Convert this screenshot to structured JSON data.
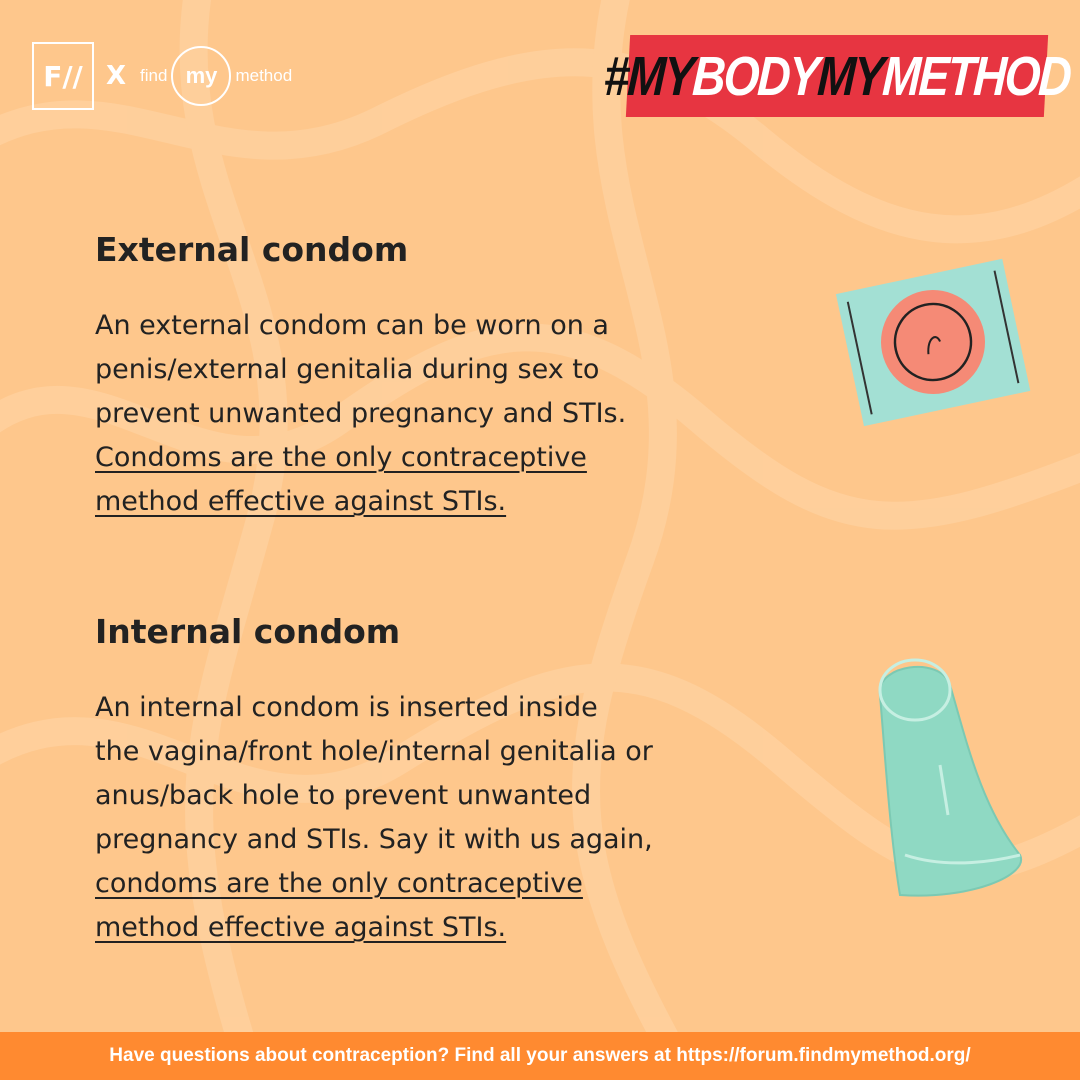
{
  "logo": {
    "partner": "F//",
    "separator": "X",
    "find": "find",
    "my": "my",
    "method": "method"
  },
  "hashtag": {
    "part1": "#MY",
    "part2": "BODY",
    "part3": "MY",
    "part4": "METHOD"
  },
  "sections": [
    {
      "title": "External condom",
      "lines": [
        {
          "text": "An external condom can be worn on a",
          "underline": false
        },
        {
          "text": "penis/external genitalia during sex to",
          "underline": false
        },
        {
          "text": "prevent unwanted pregnancy and STIs.",
          "underline": false
        },
        {
          "text": "Condoms are the only contraceptive",
          "underline": true
        },
        {
          "text": "method effective against STIs.",
          "underline": true
        }
      ]
    },
    {
      "title": "Internal condom",
      "lines": [
        {
          "text": "An internal condom is inserted inside",
          "underline": false
        },
        {
          "text": "the vagina/front hole/internal genitalia or",
          "underline": false
        },
        {
          "text": "anus/back hole to prevent unwanted",
          "underline": false
        },
        {
          "text": "pregnancy and STIs. Say it with us again,",
          "underline": false
        },
        {
          "text": "condoms are the only contraceptive",
          "underline": true
        },
        {
          "text": "method effective against STIs.",
          "underline": true
        }
      ]
    }
  ],
  "footer": "Have questions about contraception? Find all your answers at https://forum.findmymethod.org/",
  "colors": {
    "background": "#fec78c",
    "tag": "#e73541",
    "footer": "#ff8a30",
    "condom_wrapper": "#a3e0d4",
    "condom_ring": "#f58a76"
  },
  "icons": [
    "condom-packet-icon",
    "internal-condom-icon"
  ]
}
